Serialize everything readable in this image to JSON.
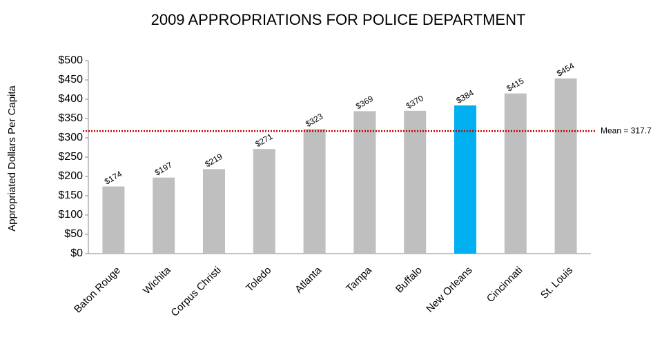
{
  "chart_data": {
    "type": "bar",
    "title": "2009 APPROPRIATIONS FOR POLICE DEPARTMENT",
    "y_label": "Appropriated Dollars Per Capita",
    "categories": [
      "Baton Rouge",
      "Wichita",
      "Corpus Christi",
      "Toledo",
      "Atlanta",
      "Tampa",
      "Buffalo",
      "New Orleans",
      "Cincinnati",
      "St. Louis"
    ],
    "values": [
      174,
      197,
      219,
      271,
      323,
      369,
      370,
      384,
      415,
      454
    ],
    "value_labels": [
      "$174",
      "$197",
      "$219",
      "$271",
      "$323",
      "$369",
      "$370",
      "$384",
      "$415",
      "$454"
    ],
    "colors": [
      "#bfbfbf",
      "#bfbfbf",
      "#bfbfbf",
      "#bfbfbf",
      "#bfbfbf",
      "#bfbfbf",
      "#bfbfbf",
      "#00b0f0",
      "#bfbfbf",
      "#bfbfbf"
    ],
    "ylim": [
      0,
      500
    ],
    "yticks": [
      {
        "value": 0,
        "label": "$0"
      },
      {
        "value": 50,
        "label": "$50"
      },
      {
        "value": 100,
        "label": "$100"
      },
      {
        "value": 150,
        "label": "$150"
      },
      {
        "value": 200,
        "label": "$200"
      },
      {
        "value": 250,
        "label": "$250"
      },
      {
        "value": 300,
        "label": "$300"
      },
      {
        "value": 350,
        "label": "$350"
      },
      {
        "value": 400,
        "label": "$400"
      },
      {
        "value": 450,
        "label": "$450"
      },
      {
        "value": 500,
        "label": "$500"
      }
    ],
    "mean_line": {
      "value": 317.7,
      "label": "Mean = 317.7",
      "color": "#c00000"
    },
    "grid": false
  }
}
